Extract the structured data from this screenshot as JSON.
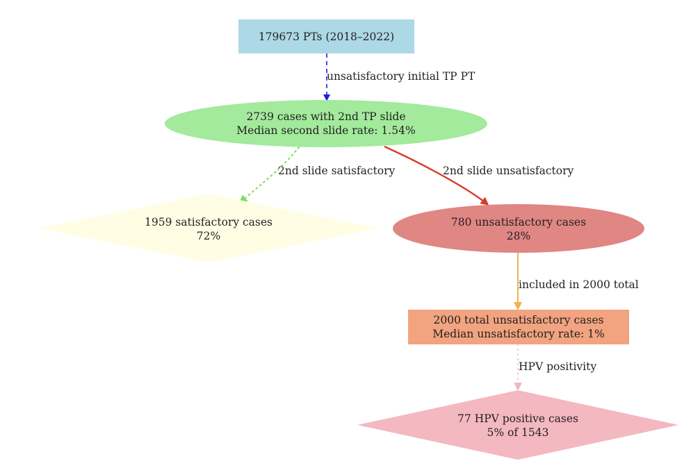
{
  "diagram": {
    "nodes": {
      "start": {
        "text": "179673 PTs (2018–2022)",
        "color": "#add8e6"
      },
      "second_slide": {
        "line1": "2739 cases with 2nd TP slide",
        "line2": "Median second slide rate: 1.54%",
        "color": "#a3ea9c"
      },
      "satisfactory": {
        "line1": "1959 satisfactory cases",
        "line2": "72%",
        "color": "#fffee5"
      },
      "unsatisfactory": {
        "line1": "780 unsatisfactory cases",
        "line2": "28%",
        "color": "#e08683"
      },
      "total_unsatisfactory": {
        "line1": "2000 total unsatisfactory cases",
        "line2": "Median unsatisfactory rate: 1%",
        "color": "#f2a37f"
      },
      "hpv_positive": {
        "line1": "77 HPV positive cases",
        "line2": "5% of 1543",
        "color": "#f3b8c0"
      }
    },
    "edges": {
      "initial": {
        "label": "unsatisfactory initial TP PT",
        "color": "#1f1fe6"
      },
      "satisfactory": {
        "label": "2nd slide satisfactory",
        "color": "#77e05a"
      },
      "unsatisfactory": {
        "label": "2nd slide unsatisfactory",
        "color": "#d83b2a"
      },
      "included": {
        "label": "included in 2000 total",
        "color": "#f2b24d"
      },
      "hpv": {
        "label": "HPV positivity",
        "color": "#f2b8c6"
      }
    }
  }
}
